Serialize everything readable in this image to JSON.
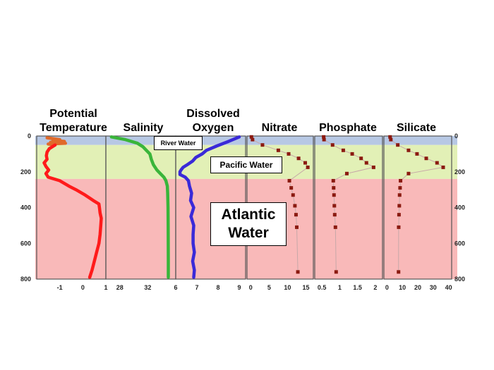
{
  "colors": {
    "surface_band": "#b7c8e4",
    "pacific_band": "#e2f0b6",
    "atlantic_band": "#f9b9b9",
    "temperature": "#ff1a1a",
    "temperature_upper": "#e06a2a",
    "salinity": "#3ab53a",
    "oxygen": "#3a2ad8",
    "nutrient_line": "#c7a8a8",
    "nutrient_marker": "#8b1a10",
    "frame": "#555555"
  },
  "labels": {
    "river_water": "River Water",
    "pacific_water": "Pacific Water",
    "atlantic_water": "Atlantic Water"
  },
  "chart_data": {
    "type": "line",
    "depth_axis": {
      "ylim": [
        0,
        800
      ],
      "inverted": true,
      "ticks": [
        "0",
        "200",
        "400",
        "600",
        "800"
      ]
    },
    "water_masses": [
      {
        "name": "River Water",
        "depth": [
          0,
          50
        ]
      },
      {
        "name": "Pacific Water",
        "depth": [
          50,
          240
        ]
      },
      {
        "name": "Atlantic Water",
        "depth": [
          240,
          800
        ]
      }
    ],
    "panels": [
      {
        "title": [
          "Potential",
          "Temperature"
        ],
        "xlim": [
          -2,
          1
        ],
        "xticks": [
          "-1",
          "0",
          "1"
        ],
        "xtick_values": [
          -1,
          0,
          1
        ],
        "color_key": "temperature",
        "mode": "line",
        "series": [
          {
            "depth": [
              10,
              20,
              25,
              30,
              35,
              40,
              45,
              50
            ],
            "value": [
              -1.55,
              -1.0,
              -1.3,
              -0.8,
              -1.4,
              -0.75,
              -1.5,
              -1.2
            ]
          },
          {
            "depth": [
              50,
              70,
              90,
              110,
              130,
              150,
              170,
              190,
              210,
              230,
              250,
              280,
              300,
              330,
              360,
              380,
              400,
              430,
              460,
              500,
              550,
              600,
              650,
              700,
              750,
              790
            ],
            "value": [
              -1.2,
              -1.45,
              -1.55,
              -1.58,
              -1.55,
              -1.68,
              -1.6,
              -1.48,
              -1.6,
              -1.5,
              -1.0,
              -0.6,
              -0.3,
              0.1,
              0.45,
              0.7,
              0.72,
              0.75,
              0.8,
              0.78,
              0.75,
              0.7,
              0.6,
              0.5,
              0.4,
              0.3
            ]
          }
        ]
      },
      {
        "title": [
          "Salinity"
        ],
        "xlim": [
          26,
          36
        ],
        "xticks": [
          "28",
          "32"
        ],
        "xtick_values": [
          28,
          32
        ],
        "color_key": "salinity",
        "mode": "line",
        "series": [
          {
            "depth": [
              5,
              20,
              40,
              60,
              80,
              100,
              130,
              160,
              190,
              210,
              230,
              250,
              280,
              320,
              400,
              500,
              600,
              700,
              790
            ],
            "value": [
              26.8,
              28.8,
              30.5,
              31.3,
              31.8,
              32.3,
              32.5,
              32.8,
              33.3,
              33.8,
              34.3,
              34.6,
              34.8,
              34.85,
              34.9,
              34.92,
              34.93,
              34.94,
              34.94
            ]
          }
        ]
      },
      {
        "title": [
          "Dissolved",
          "Oxygen"
        ],
        "xlim": [
          6,
          9.3
        ],
        "xticks": [
          "6",
          "7",
          "8",
          "9"
        ],
        "xtick_values": [
          6,
          7,
          8,
          9
        ],
        "color_key": "oxygen",
        "mode": "line",
        "series": [
          {
            "depth": [
              5,
              30,
              55,
              80,
              100,
              120,
              140,
              160,
              175,
              190,
              200,
              215,
              230,
              250,
              280,
              320,
              360,
              400,
              450,
              500,
              550,
              600,
              650,
              700,
              750,
              790
            ],
            "value": [
              9.0,
              8.5,
              7.95,
              7.45,
              7.25,
              6.95,
              6.8,
              6.55,
              6.35,
              6.25,
              6.2,
              6.2,
              6.45,
              6.6,
              6.65,
              6.75,
              6.7,
              6.85,
              6.72,
              6.85,
              6.82,
              6.82,
              6.88,
              6.8,
              6.88,
              6.85
            ]
          }
        ]
      },
      {
        "title": [
          "Nitrate"
        ],
        "xlim": [
          -1,
          17
        ],
        "xticks": [
          "0",
          "5",
          "10",
          "15"
        ],
        "xtick_values": [
          0,
          5,
          10,
          15
        ],
        "color_key": "nutrient_marker",
        "mode": "markers",
        "series": [
          {
            "depth": [
              5,
              20,
              50,
              80,
              100,
              125,
              150,
              175,
              250,
              290,
              330,
              390,
              440,
              510,
              760
            ],
            "value": [
              0.2,
              0.5,
              3.2,
              7.5,
              10.3,
              13.0,
              14.8,
              15.5,
              10.5,
              11.0,
              11.5,
              12.0,
              12.3,
              12.5,
              12.8
            ]
          }
        ]
      },
      {
        "title": [
          "Phosphate"
        ],
        "xlim": [
          0.3,
          2.2
        ],
        "xticks": [
          "0.5",
          "1",
          "1.5",
          "2"
        ],
        "xtick_values": [
          0.5,
          1,
          1.5,
          2
        ],
        "color_key": "nutrient_marker",
        "mode": "markers",
        "series": [
          {
            "depth": [
              5,
              20,
              50,
              80,
              100,
              125,
              150,
              175,
              210,
              250,
              290,
              330,
              390,
              440,
              510,
              760
            ],
            "value": [
              0.55,
              0.56,
              0.8,
              1.1,
              1.35,
              1.6,
              1.75,
              1.95,
              1.2,
              0.82,
              0.83,
              0.84,
              0.85,
              0.86,
              0.88,
              0.9
            ]
          }
        ]
      },
      {
        "title": [
          "Silicate"
        ],
        "xlim": [
          -2,
          42
        ],
        "xticks": [
          "0",
          "10",
          "20",
          "30",
          "40"
        ],
        "xtick_values": [
          0,
          10,
          20,
          30,
          40
        ],
        "color_key": "nutrient_marker",
        "mode": "markers",
        "series": [
          {
            "depth": [
              5,
              20,
              50,
              80,
              100,
              125,
              150,
              175,
              210,
              250,
              290,
              330,
              390,
              440,
              510,
              760
            ],
            "value": [
              2.0,
              2.5,
              7.0,
              14.0,
              19.5,
              25.5,
              32.5,
              36.5,
              14.0,
              8.8,
              8.5,
              8.2,
              8.0,
              7.8,
              7.6,
              7.5
            ]
          }
        ]
      }
    ]
  }
}
